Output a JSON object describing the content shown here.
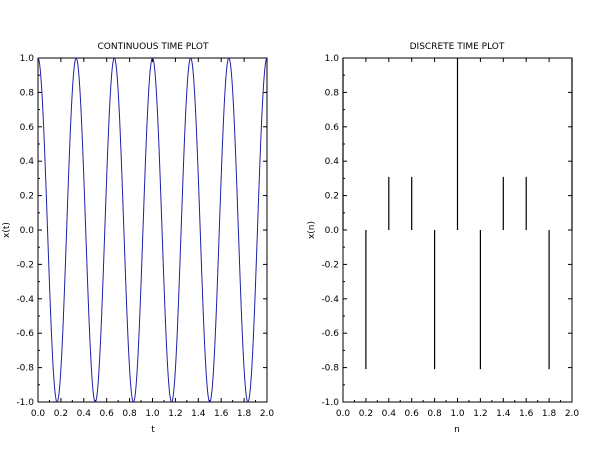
{
  "colors": {
    "continuous": "#1f1fa8",
    "discrete": "#000000",
    "axis": "#000000"
  },
  "chart_data": [
    {
      "type": "line",
      "title": "CONTINUOUS TIME PLOT",
      "xlabel": "t",
      "ylabel": "x(t)",
      "xlim": [
        0.0,
        2.0
      ],
      "ylim": [
        -1.0,
        1.0
      ],
      "xticks": [
        "0.0",
        "0.2",
        "0.4",
        "0.6",
        "0.8",
        "1.0",
        "1.2",
        "1.4",
        "1.6",
        "1.8",
        "2.0"
      ],
      "yticks": [
        "-1.0",
        "-0.8",
        "-0.6",
        "-0.4",
        "-0.2",
        "0.0",
        "0.2",
        "0.4",
        "0.6",
        "0.8",
        "1.0"
      ],
      "grid": false,
      "series": [
        {
          "function": "cos(2*pi*3*t)",
          "frequency": 3
        }
      ]
    },
    {
      "type": "stem",
      "title": "DISCRETE TIME PLOT",
      "xlabel": "n",
      "ylabel": "x(n)",
      "xlim": [
        0.0,
        2.0
      ],
      "ylim": [
        -1.0,
        1.0
      ],
      "xticks": [
        "0.0",
        "0.2",
        "0.4",
        "0.6",
        "0.8",
        "1.0",
        "1.2",
        "1.4",
        "1.6",
        "1.8",
        "2.0"
      ],
      "yticks": [
        "-1.0",
        "-0.8",
        "-0.6",
        "-0.4",
        "-0.2",
        "0.0",
        "0.2",
        "0.4",
        "0.6",
        "0.8",
        "1.0"
      ],
      "grid": false,
      "x": [
        0.0,
        0.2,
        0.4,
        0.6,
        0.8,
        1.0,
        1.2,
        1.4,
        1.6,
        1.8,
        2.0
      ],
      "y": [
        1.0,
        -0.809,
        0.309,
        0.309,
        -0.809,
        1.0,
        -0.809,
        0.309,
        0.309,
        -0.809,
        1.0
      ]
    }
  ]
}
